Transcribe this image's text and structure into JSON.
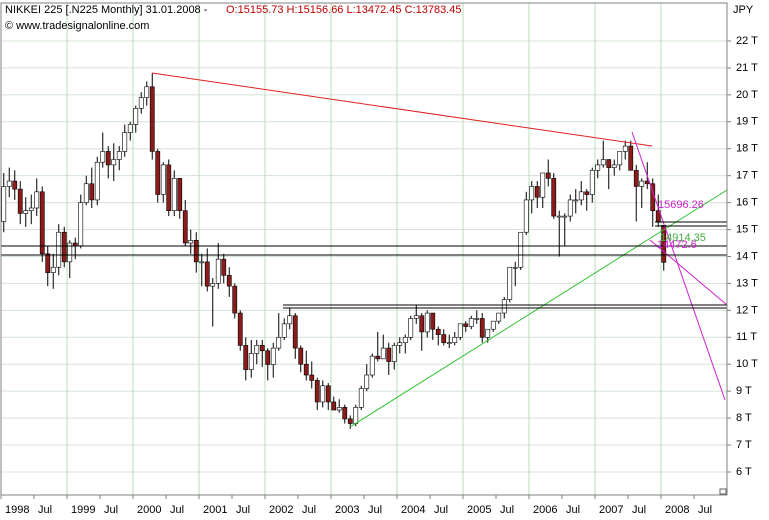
{
  "chart_data": {
    "type": "candlestick",
    "title": "NIKKEI 225 [.N225  Monthly] 31.01.2008 -",
    "subtitle": "O:15155.73 H:15156.66 L:13472.45 C:13783.45",
    "watermark": "© www.tradesignalonline.com",
    "y_unit": "JPY",
    "annotations": [
      {
        "text": "15696.26",
        "color": "#d020d0"
      },
      {
        "text": "14914.35",
        "color": "#40b040"
      },
      {
        "text": "14472.6",
        "color": "#d020d0"
      }
    ],
    "up_color": "#ffffff",
    "down_color": "#8b1a1a",
    "grid": true,
    "x": [
      "1998-01",
      "1998-02",
      "1998-03",
      "1998-04",
      "1998-05",
      "1998-06",
      "1998-07",
      "1998-08",
      "1998-09",
      "1998-10",
      "1998-11",
      "1998-12",
      "1999-01",
      "1999-02",
      "1999-03",
      "1999-04",
      "1999-05",
      "1999-06",
      "1999-07",
      "1999-08",
      "1999-09",
      "1999-10",
      "1999-11",
      "1999-12",
      "2000-01",
      "2000-02",
      "2000-03",
      "2000-04",
      "2000-05",
      "2000-06",
      "2000-07",
      "2000-08",
      "2000-09",
      "2000-10",
      "2000-11",
      "2000-12",
      "2001-01",
      "2001-02",
      "2001-03",
      "2001-04",
      "2001-05",
      "2001-06",
      "2001-07",
      "2001-08",
      "2001-09",
      "2001-10",
      "2001-11",
      "2001-12",
      "2002-01",
      "2002-02",
      "2002-03",
      "2002-04",
      "2002-05",
      "2002-06",
      "2002-07",
      "2002-08",
      "2002-09",
      "2002-10",
      "2002-11",
      "2002-12",
      "2003-01",
      "2003-02",
      "2003-03",
      "2003-04",
      "2003-05",
      "2003-06",
      "2003-07",
      "2003-08",
      "2003-09",
      "2003-10",
      "2003-11",
      "2003-12",
      "2004-01",
      "2004-02",
      "2004-03",
      "2004-04",
      "2004-05",
      "2004-06",
      "2004-07",
      "2004-08",
      "2004-09",
      "2004-10",
      "2004-11",
      "2004-12",
      "2005-01",
      "2005-02",
      "2005-03",
      "2005-04",
      "2005-05",
      "2005-06",
      "2005-07",
      "2005-08",
      "2005-09",
      "2005-10",
      "2005-11",
      "2005-12",
      "2006-01",
      "2006-02",
      "2006-03",
      "2006-04",
      "2006-05",
      "2006-06",
      "2006-07",
      "2006-08",
      "2006-09",
      "2006-10",
      "2006-11",
      "2006-12",
      "2007-01",
      "2007-02",
      "2007-03",
      "2007-04",
      "2007-05",
      "2007-06",
      "2007-07",
      "2007-08",
      "2007-09",
      "2007-10",
      "2007-11",
      "2007-12",
      "2008-01"
    ],
    "open": [
      15300,
      16600,
      16800,
      16500,
      15600,
      15700,
      15800,
      16400,
      14100,
      13400,
      13600,
      14900,
      13800,
      14500,
      14400,
      16000,
      16700,
      16100,
      17500,
      17900,
      17400,
      17600,
      17900,
      18600,
      18900,
      19500,
      19900,
      20300,
      17900,
      16300,
      17400,
      15700,
      16900,
      15700,
      14500,
      14600,
      13800,
      13800,
      12900,
      13000,
      13900,
      13300,
      12900,
      11900,
      10700,
      9800,
      10400,
      10700,
      10500,
      9990,
      10600,
      11000,
      11500,
      11800,
      10600,
      10000,
      9600,
      9400,
      8600,
      9200,
      8600,
      8300,
      8400,
      7970,
      7800,
      8400,
      9100,
      9600,
      10300,
      10200,
      10600,
      10100,
      10700,
      10800,
      11000,
      11700,
      11800,
      11200,
      11900,
      11300,
      11100,
      10800,
      10800,
      11000,
      11500,
      11400,
      11700,
      11700,
      11000,
      11300,
      11600,
      11900,
      12400,
      13600,
      13600,
      14900,
      16100,
      16600,
      16200,
      17100,
      16900,
      15500,
      15500,
      15500,
      16100,
      16100,
      16400,
      16300,
      17200,
      17400,
      17600,
      17300,
      17400,
      17900,
      18100,
      17200,
      16600,
      16800,
      16700,
      15700,
      15155.73
    ],
    "high": [
      17100,
      17300,
      17200,
      16800,
      16200,
      16300,
      16900,
      16600,
      14400,
      14100,
      15200,
      15100,
      14600,
      14700,
      16300,
      17000,
      17300,
      17700,
      18600,
      18100,
      18200,
      18100,
      18900,
      19000,
      19600,
      20100,
      20500,
      20800,
      18000,
      17500,
      17600,
      17200,
      16900,
      16100,
      15000,
      14900,
      14100,
      14300,
      13200,
      14500,
      14100,
      13600,
      13000,
      12000,
      11000,
      10900,
      10900,
      10900,
      10600,
      10800,
      11900,
      11700,
      12100,
      11900,
      10700,
      10500,
      10100,
      9500,
      9400,
      9300,
      8800,
      8700,
      8500,
      8100,
      8500,
      9200,
      10000,
      10400,
      11200,
      11100,
      10800,
      10800,
      11000,
      11100,
      11800,
      12200,
      11900,
      12000,
      11900,
      11400,
      11300,
      11100,
      11200,
      11500,
      11600,
      11800,
      12000,
      11900,
      11300,
      11600,
      11900,
      12500,
      13600,
      13800,
      14900,
      16400,
      16800,
      16800,
      17100,
      17600,
      17100,
      15700,
      15600,
      16300,
      16500,
      16800,
      16500,
      17300,
      17600,
      18300,
      17600,
      17600,
      17900,
      18300,
      18300,
      17400,
      16900,
      17500,
      16900,
      16300,
      15156.66
    ],
    "low": [
      14900,
      16200,
      16100,
      15200,
      15100,
      15200,
      15500,
      13800,
      12900,
      12800,
      13300,
      13600,
      13200,
      13900,
      14300,
      15900,
      15800,
      15900,
      17300,
      16900,
      16800,
      17200,
      17700,
      18300,
      18600,
      19300,
      19600,
      17600,
      16000,
      16000,
      15500,
      15500,
      15400,
      14400,
      14100,
      13400,
      12900,
      12700,
      11400,
      12800,
      13000,
      12500,
      11700,
      10500,
      9400,
      9500,
      10000,
      9900,
      9400,
      9500,
      10500,
      10900,
      11300,
      10200,
      9700,
      9400,
      9100,
      8300,
      8400,
      8300,
      8300,
      8200,
      7800,
      7600,
      7700,
      8300,
      9000,
      9500,
      10100,
      10200,
      9600,
      9800,
      10400,
      10400,
      10900,
      11500,
      10500,
      11000,
      10900,
      10700,
      10700,
      10600,
      10700,
      10900,
      11200,
      11300,
      11500,
      10800,
      10800,
      11200,
      11500,
      11700,
      12300,
      12900,
      13500,
      14800,
      15600,
      15800,
      15800,
      16600,
      15400,
      14000,
      14400,
      15300,
      15600,
      15900,
      15700,
      16000,
      16900,
      17300,
      16500,
      17000,
      17200,
      17600,
      17200,
      15300,
      15800,
      16500,
      15100,
      15100,
      13472.45
    ],
    "close": [
      16600,
      16800,
      16500,
      15600,
      15700,
      15800,
      16400,
      14100,
      13400,
      13600,
      14900,
      13800,
      14500,
      14400,
      16000,
      16700,
      16100,
      17500,
      17900,
      17400,
      17600,
      17900,
      18600,
      18900,
      19500,
      19900,
      20300,
      17900,
      16300,
      17400,
      15700,
      16900,
      15700,
      14500,
      14600,
      13800,
      13800,
      12900,
      13000,
      13900,
      13300,
      12900,
      11900,
      10700,
      9800,
      10400,
      10700,
      10500,
      9990,
      10600,
      11000,
      11500,
      11800,
      10600,
      10000,
      9600,
      9400,
      8600,
      9200,
      8600,
      8300,
      8400,
      7970,
      7800,
      8400,
      9100,
      9600,
      10300,
      10200,
      10600,
      10100,
      10700,
      10800,
      11000,
      11700,
      11800,
      11200,
      11900,
      11300,
      11100,
      10800,
      10800,
      11000,
      11500,
      11400,
      11700,
      11700,
      11000,
      11300,
      11600,
      11900,
      12400,
      13600,
      13600,
      14900,
      16100,
      16600,
      16200,
      17100,
      16900,
      15500,
      15500,
      15500,
      16100,
      16100,
      16400,
      16300,
      17200,
      17400,
      17600,
      17300,
      17400,
      17900,
      18100,
      17200,
      16600,
      16800,
      16700,
      15700,
      15300,
      13783.45
    ],
    "xlim": [
      "1998-01",
      "2009-01"
    ],
    "xticks": [
      {
        "value": "1998-01",
        "label": "1998"
      },
      {
        "value": "1998-07",
        "label": "Jul"
      },
      {
        "value": "1999-01",
        "label": "1999"
      },
      {
        "value": "1999-07",
        "label": "Jul"
      },
      {
        "value": "2000-01",
        "label": "2000"
      },
      {
        "value": "2000-07",
        "label": "Jul"
      },
      {
        "value": "2001-01",
        "label": "2001"
      },
      {
        "value": "2001-07",
        "label": "Jul"
      },
      {
        "value": "2002-01",
        "label": "2002"
      },
      {
        "value": "2002-07",
        "label": "Jul"
      },
      {
        "value": "2003-01",
        "label": "2003"
      },
      {
        "value": "2003-07",
        "label": "Jul"
      },
      {
        "value": "2004-01",
        "label": "2004"
      },
      {
        "value": "2004-07",
        "label": "Jul"
      },
      {
        "value": "2005-01",
        "label": "2005"
      },
      {
        "value": "2005-07",
        "label": "Jul"
      },
      {
        "value": "2006-01",
        "label": "2006"
      },
      {
        "value": "2006-07",
        "label": "Jul"
      },
      {
        "value": "2007-01",
        "label": "2007"
      },
      {
        "value": "2007-07",
        "label": "Jul"
      },
      {
        "value": "2008-01",
        "label": "2008"
      },
      {
        "value": "2008-07",
        "label": "Jul"
      }
    ],
    "ylim": [
      5146,
      23410
    ],
    "yticks": [
      {
        "value": 6000,
        "label": "6 T"
      },
      {
        "value": 7000,
        "label": "7 T"
      },
      {
        "value": 8000,
        "label": "8 T"
      },
      {
        "value": 9000,
        "label": "9 T"
      },
      {
        "value": 10000,
        "label": "10 T"
      },
      {
        "value": 11000,
        "label": "11 T"
      },
      {
        "value": 12000,
        "label": "12 T"
      },
      {
        "value": 13000,
        "label": "13 T"
      },
      {
        "value": 14000,
        "label": "14 T"
      },
      {
        "value": 15000,
        "label": "15 T"
      },
      {
        "value": 16000,
        "label": "16 T"
      },
      {
        "value": 17000,
        "label": "17 T"
      },
      {
        "value": 18000,
        "label": "18 T"
      },
      {
        "value": 19000,
        "label": "19 T"
      },
      {
        "value": 20000,
        "label": "20 T"
      },
      {
        "value": 21000,
        "label": "21 T"
      },
      {
        "value": 22000,
        "label": "22 T"
      }
    ]
  }
}
